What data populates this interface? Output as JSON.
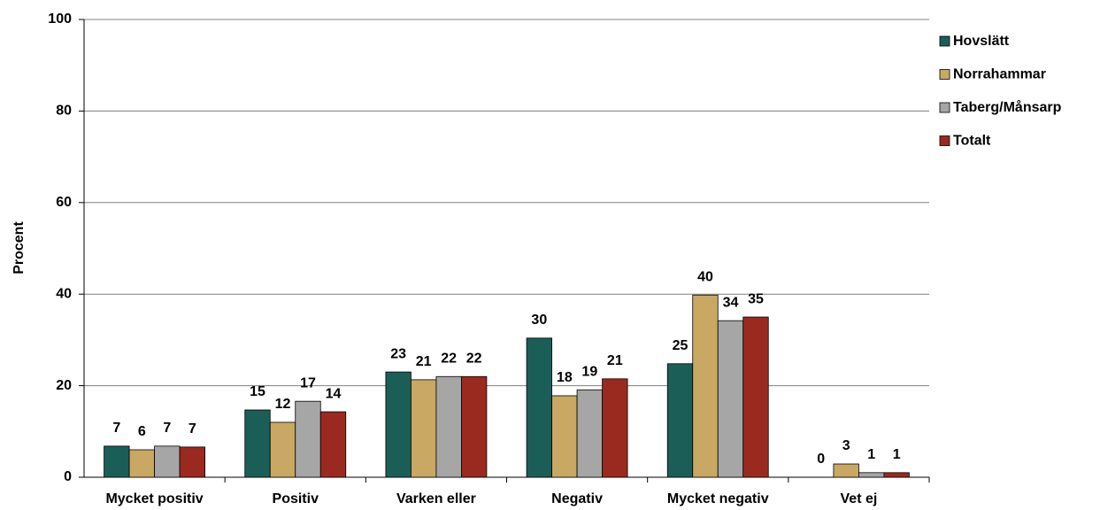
{
  "chart_data": {
    "type": "bar",
    "y_label": "Procent",
    "categories": [
      "Mycket positiv",
      "Positiv",
      "Varken eller",
      "Negativ",
      "Mycket negativ",
      "Vet ej"
    ],
    "series": [
      {
        "name": "Hovslätt",
        "color": "#1b5e57",
        "values": [
          6.8,
          14.7,
          23.0,
          30.4,
          24.8,
          0
        ],
        "value_labels": [
          "7",
          "15",
          "23",
          "30",
          "25",
          "0"
        ]
      },
      {
        "name": "Norrahammar",
        "color": "#c8a862",
        "values": [
          6.0,
          12.0,
          21.3,
          17.8,
          39.8,
          2.9
        ],
        "value_labels": [
          "6",
          "12",
          "21",
          "18",
          "40",
          "3"
        ]
      },
      {
        "name": "Taberg/Månsarp",
        "color": "#a6a6a6",
        "values": [
          6.8,
          16.6,
          22.0,
          19.1,
          34.2,
          1.0
        ],
        "value_labels": [
          "7",
          "17",
          "22",
          "19",
          "34",
          "1"
        ]
      },
      {
        "name": "Totalt",
        "color": "#9a2a1f",
        "values": [
          6.6,
          14.3,
          22.0,
          21.5,
          35.0,
          1.0
        ],
        "value_labels": [
          "7",
          "14",
          "22",
          "21",
          "35",
          "1"
        ]
      }
    ],
    "ylim": [
      0,
      100
    ],
    "yticks": [
      0,
      20,
      40,
      60,
      80,
      100
    ],
    "grid": true,
    "legend": "right"
  }
}
